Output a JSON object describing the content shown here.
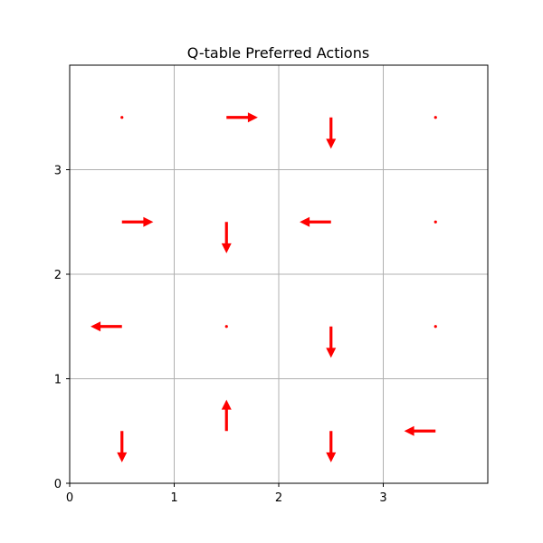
{
  "chart_data": {
    "type": "quiver",
    "title": "Q-table Preferred Actions",
    "xlabel": "",
    "ylabel": "",
    "xlim": [
      0,
      4
    ],
    "ylim": [
      4,
      0
    ],
    "y_inverted": true,
    "x_ticks": [
      "0",
      "1",
      "2",
      "3"
    ],
    "y_ticks": [
      "0",
      "1",
      "2",
      "3"
    ],
    "grid": true,
    "arrow_color": "#ff0000",
    "actions": [
      {
        "x": 0.5,
        "y": 0.5,
        "dir": "down"
      },
      {
        "x": 1.5,
        "y": 0.5,
        "dir": "up"
      },
      {
        "x": 2.5,
        "y": 0.5,
        "dir": "down"
      },
      {
        "x": 3.5,
        "y": 0.5,
        "dir": "left"
      },
      {
        "x": 0.5,
        "y": 1.5,
        "dir": "left"
      },
      {
        "x": 1.5,
        "y": 1.5,
        "dir": "none"
      },
      {
        "x": 2.5,
        "y": 1.5,
        "dir": "down"
      },
      {
        "x": 3.5,
        "y": 1.5,
        "dir": "none"
      },
      {
        "x": 0.5,
        "y": 2.5,
        "dir": "right"
      },
      {
        "x": 1.5,
        "y": 2.5,
        "dir": "down"
      },
      {
        "x": 2.5,
        "y": 2.5,
        "dir": "left"
      },
      {
        "x": 3.5,
        "y": 2.5,
        "dir": "none"
      },
      {
        "x": 0.5,
        "y": 3.5,
        "dir": "none"
      },
      {
        "x": 1.5,
        "y": 3.5,
        "dir": "right"
      },
      {
        "x": 2.5,
        "y": 3.5,
        "dir": "down"
      },
      {
        "x": 3.5,
        "y": 3.5,
        "dir": "none"
      }
    ]
  }
}
